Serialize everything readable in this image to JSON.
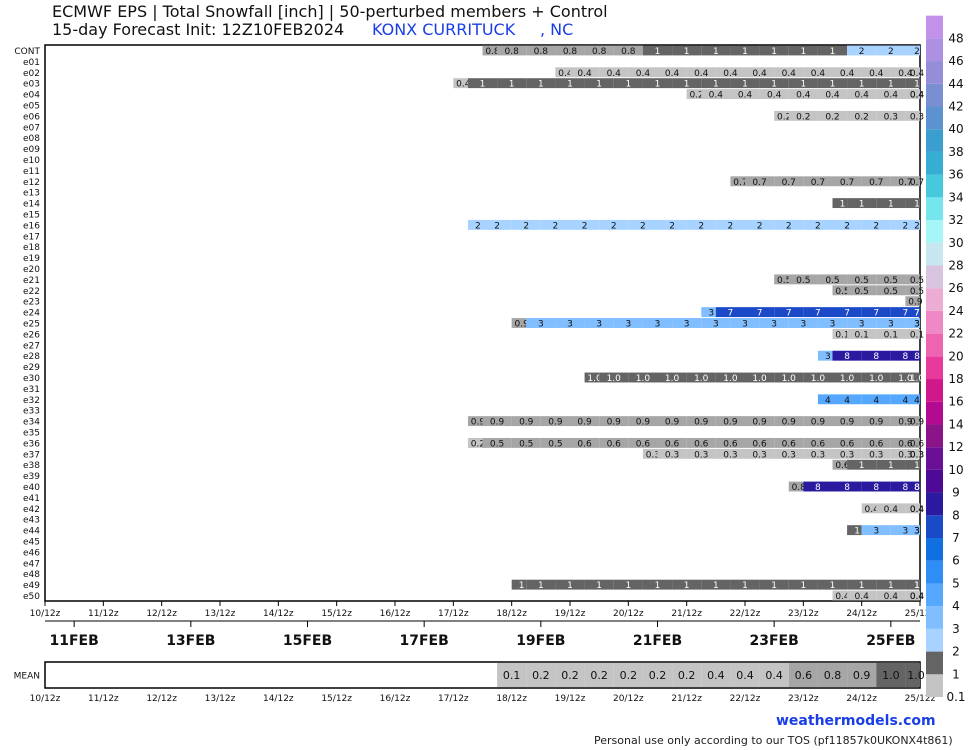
{
  "header": {
    "title": "ECMWF EPS | Total Snowfall [inch] | 50-perturbed members + Control",
    "subtitle": "15-day Forecast Init: 12Z10FEB2024",
    "station": "KONX CURRITUCK",
    "state": ", NC"
  },
  "footer": {
    "brand": "weathermodels.com",
    "tos": "Personal use only according to our TOS (pf11857k0UKONX4t861)"
  },
  "chart_data": {
    "type": "heatmap",
    "members": [
      "CONT",
      "e01",
      "e02",
      "e03",
      "e04",
      "e05",
      "e06",
      "e07",
      "e08",
      "e09",
      "e10",
      "e11",
      "e12",
      "e13",
      "e14",
      "e15",
      "e16",
      "e17",
      "e18",
      "e19",
      "e20",
      "e21",
      "e22",
      "e23",
      "e24",
      "e25",
      "e26",
      "e27",
      "e28",
      "e29",
      "e30",
      "e31",
      "e32",
      "e33",
      "e34",
      "e35",
      "e36",
      "e37",
      "e38",
      "e39",
      "e40",
      "e41",
      "e42",
      "e43",
      "e44",
      "e45",
      "e46",
      "e47",
      "e48",
      "e49",
      "e50"
    ],
    "time_ticks": [
      "10/12z",
      "11/12z",
      "12/12z",
      "13/12z",
      "14/12z",
      "15/12z",
      "16/12z",
      "17/12z",
      "18/12z",
      "19/12z",
      "20/12z",
      "21/12z",
      "22/12z",
      "23/12z",
      "24/12z",
      "25/12z"
    ],
    "date_labels": [
      "11FEB",
      "13FEB",
      "15FEB",
      "17FEB",
      "19FEB",
      "21FEB",
      "23FEB",
      "25FEB"
    ],
    "colorbar_levels": [
      "0.1",
      "1",
      "2",
      "3",
      "4",
      "5",
      "6",
      "7",
      "8",
      "9",
      "10",
      "12",
      "14",
      "16",
      "18",
      "20",
      "22",
      "24",
      "26",
      "28",
      "30",
      "32",
      "34",
      "36",
      "38",
      "40",
      "42",
      "44",
      "46",
      "48"
    ],
    "colorbar_colors": [
      "#c4c4c4",
      "#646464",
      "#a8d2ff",
      "#80beff",
      "#56a8ff",
      "#2e8ef6",
      "#1070e2",
      "#1a4ac8",
      "#2a1aa0",
      "#4e0a96",
      "#6a1096",
      "#8a1488",
      "#b20a90",
      "#d0188c",
      "#e83a9c",
      "#ee64b0",
      "#ef88c4",
      "#ecacd4",
      "#d8c4e0",
      "#c8e6f0",
      "#a6f6f8",
      "#76e6ee",
      "#48c8dc",
      "#36aed2",
      "#3a9ece",
      "#5c92d0",
      "#7a8ed2",
      "#948ed8",
      "#ae90e2",
      "#c292ea"
    ],
    "mean_label": "MEAN",
    "mean_cells": [
      {
        "t": 8,
        "v": "0.1"
      },
      {
        "t": 8.5,
        "v": "0.2"
      },
      {
        "t": 9,
        "v": "0.2"
      },
      {
        "t": 9.5,
        "v": "0.2"
      },
      {
        "t": 10,
        "v": "0.2"
      },
      {
        "t": 10.5,
        "v": "0.2"
      },
      {
        "t": 11,
        "v": "0.2"
      },
      {
        "t": 11.5,
        "v": "0.4"
      },
      {
        "t": 12,
        "v": "0.4"
      },
      {
        "t": 12.5,
        "v": "0.4"
      },
      {
        "t": 13,
        "v": "0.6"
      },
      {
        "t": 13.5,
        "v": "0.8"
      },
      {
        "t": 14,
        "v": "0.9"
      },
      {
        "t": 14.5,
        "v": "1.0"
      },
      {
        "t": 15,
        "v": "1.0"
      }
    ],
    "member_rows": [
      {
        "m": "CONT",
        "start": 7.5,
        "vals": [
          "0.8",
          "0.8",
          "0.8",
          "0.8",
          "0.8",
          "0.8",
          "1",
          "1",
          "1",
          "1",
          "1",
          "1",
          "1",
          "2",
          "2",
          "2"
        ]
      },
      {
        "m": "e02",
        "start": 8.75,
        "vals": [
          "0.4",
          "0.4",
          "0.4",
          "0.4",
          "0.4",
          "0.4",
          "0.4",
          "0.4",
          "0.4",
          "0.4",
          "0.4",
          "0.4",
          "0.4",
          "0.4"
        ]
      },
      {
        "m": "e03",
        "start": 7,
        "vals": [
          "0.4",
          "1",
          "1",
          "1",
          "1",
          "1",
          "1",
          "1",
          "1",
          "1",
          "1",
          "1",
          "1",
          "1",
          "1",
          "1",
          "1"
        ]
      },
      {
        "m": "e04",
        "start": 11,
        "vals": [
          "0.2",
          "0.4",
          "0.4",
          "0.4",
          "0.4",
          "0.4",
          "0.4",
          "0.4",
          "0.4",
          "0.4"
        ]
      },
      {
        "m": "e06",
        "start": 12.5,
        "vals": [
          "0.2",
          "0.2",
          "0.2",
          "0.2",
          "0.3",
          "0.3"
        ]
      },
      {
        "m": "e12",
        "start": 11.75,
        "vals": [
          "0.7",
          "0.7",
          "0.7",
          "0.7",
          "0.7",
          "0.7",
          "0.7",
          "0.7"
        ]
      },
      {
        "m": "e14",
        "start": 13.5,
        "vals": [
          "1",
          "1",
          "1",
          "1"
        ]
      },
      {
        "m": "e16",
        "start": 7.25,
        "vals": [
          "2",
          "2",
          "2",
          "2",
          "2",
          "2",
          "2",
          "2",
          "2",
          "2",
          "2",
          "2",
          "2",
          "2",
          "2",
          "2",
          "2"
        ]
      },
      {
        "m": "e21",
        "start": 12.5,
        "vals": [
          "0.5",
          "0.5",
          "0.5",
          "0.5",
          "0.5",
          "0.5"
        ]
      },
      {
        "m": "e22",
        "start": 13.5,
        "vals": [
          "0.5",
          "0.5",
          "0.5",
          "0.5"
        ]
      },
      {
        "m": "e23",
        "start": 14.75,
        "vals": [
          "0.9"
        ]
      },
      {
        "m": "e24",
        "start": 11.25,
        "vals": [
          "3",
          "7",
          "7",
          "7",
          "7",
          "7",
          "7",
          "7",
          "7",
          "7"
        ]
      },
      {
        "m": "e25",
        "start": 8,
        "vals": [
          "0.9",
          "3",
          "3",
          "3",
          "3",
          "3",
          "3",
          "3",
          "3",
          "3",
          "3",
          "3",
          "3",
          "3",
          "3",
          "3"
        ]
      },
      {
        "m": "e26",
        "start": 13.5,
        "vals": [
          "0.1",
          "0.1",
          "0.1",
          "0.1"
        ]
      },
      {
        "m": "e28",
        "start": 13.25,
        "vals": [
          "3",
          "8",
          "8",
          "8",
          "8"
        ]
      },
      {
        "m": "e30",
        "start": 9.25,
        "vals": [
          "1.0",
          "1.0",
          "1.0",
          "1.0",
          "1.0",
          "1.0",
          "1.0",
          "1.0",
          "1.0",
          "1.0",
          "1.0",
          "1.0",
          "1.0"
        ]
      },
      {
        "m": "e32",
        "start": 13.25,
        "vals": [
          "4",
          "4",
          "4",
          "4",
          "4"
        ]
      },
      {
        "m": "e34",
        "start": 7.25,
        "vals": [
          "0.9",
          "0.9",
          "0.9",
          "0.9",
          "0.9",
          "0.9",
          "0.9",
          "0.9",
          "0.9",
          "0.9",
          "0.9",
          "0.9",
          "0.9",
          "0.9",
          "0.9",
          "0.9",
          "0.9"
        ]
      },
      {
        "m": "e36",
        "start": 7.25,
        "vals": [
          "0.2",
          "0.5",
          "0.5",
          "0.5",
          "0.6",
          "0.6",
          "0.6",
          "0.6",
          "0.6",
          "0.6",
          "0.6",
          "0.6",
          "0.6",
          "0.6",
          "0.6",
          "0.6",
          "0.6"
        ]
      },
      {
        "m": "e37",
        "start": 10.25,
        "vals": [
          "0.3",
          "0.3",
          "0.3",
          "0.3",
          "0.3",
          "0.3",
          "0.3",
          "0.3",
          "0.3",
          "0.3",
          "0.3",
          "0.3"
        ]
      },
      {
        "m": "e38",
        "start": 13.5,
        "vals": [
          "0.6",
          "1",
          "1",
          "1"
        ]
      },
      {
        "m": "e40",
        "start": 12.75,
        "vals": [
          "0.8",
          "8",
          "8",
          "8",
          "8",
          "8",
          "8"
        ]
      },
      {
        "m": "e42",
        "start": 14,
        "vals": [
          "0.4",
          "0.4",
          "0.4",
          "0.4"
        ]
      },
      {
        "m": "e44",
        "start": 13.75,
        "vals": [
          "1",
          "3",
          "3",
          "3",
          "3"
        ]
      },
      {
        "m": "e49",
        "start": 8,
        "vals": [
          "1",
          "1",
          "1",
          "1",
          "1",
          "1",
          "1",
          "1",
          "1",
          "1",
          "1",
          "1",
          "1",
          "1",
          "1",
          "1"
        ]
      },
      {
        "m": "e50",
        "start": 13.5,
        "vals": [
          "0.4",
          "0.4",
          "0.4",
          "0.4",
          "0.4"
        ]
      }
    ]
  }
}
